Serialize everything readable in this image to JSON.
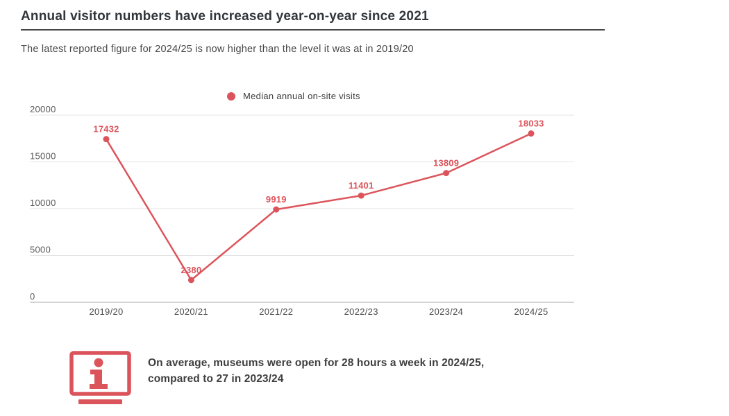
{
  "header": {
    "title": "Annual visitor numbers have increased year-on-year since 2021",
    "subtitle": "The latest reported figure for 2024/25 is now higher than the level it was at in 2019/20"
  },
  "legend": {
    "label": "Median annual on-site visits"
  },
  "chart_data": {
    "type": "line",
    "title": "Median annual on-site visits",
    "categories": [
      "2019/20",
      "2020/21",
      "2021/22",
      "2022/23",
      "2023/24",
      "2024/25"
    ],
    "series": [
      {
        "name": "Median annual on-site visits",
        "values": [
          17432,
          2380,
          9919,
          11401,
          13809,
          18033
        ]
      }
    ],
    "xlabel": "",
    "ylabel": "",
    "ylim": [
      0,
      20000
    ],
    "yticks": [
      0,
      5000,
      10000,
      15000,
      20000
    ],
    "grid": true,
    "legend_position": "top-center",
    "line_color": "#dc545b",
    "point_label_color": "#dc545b",
    "point_labels": true
  },
  "note": {
    "icon": "info-monitor-icon",
    "line1": "On average, museums were open for 28 hours a week in 2024/25,",
    "line2": "compared to 27 in 2023/24"
  },
  "colors": {
    "accent": "#dc545b",
    "gridline": "#e4e4e4",
    "axis_line": "#c6c6c6",
    "title_text": "#31363b",
    "body_text": "#3e3e3e"
  }
}
